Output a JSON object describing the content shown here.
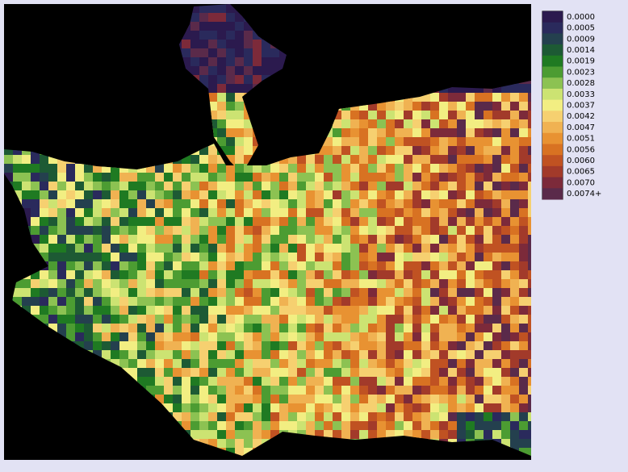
{
  "legend": {
    "entries": [
      {
        "label": "0.0000",
        "color": "#2b1a4e"
      },
      {
        "label": "0.0005",
        "color": "#2a2a5c"
      },
      {
        "label": "0.0009",
        "color": "#24404e"
      },
      {
        "label": "0.0014",
        "color": "#1d5a34"
      },
      {
        "label": "0.0019",
        "color": "#1f7a22"
      },
      {
        "label": "0.0023",
        "color": "#4c9c32"
      },
      {
        "label": "0.0028",
        "color": "#8cc252"
      },
      {
        "label": "0.0033",
        "color": "#cce372"
      },
      {
        "label": "0.0037",
        "color": "#f2ee82"
      },
      {
        "label": "0.0042",
        "color": "#f6d070"
      },
      {
        "label": "0.0047",
        "color": "#f0b252"
      },
      {
        "label": "0.0051",
        "color": "#e89232"
      },
      {
        "label": "0.0056",
        "color": "#d87222"
      },
      {
        "label": "0.0060",
        "color": "#c05222"
      },
      {
        "label": "0.0065",
        "color": "#a23a2a"
      },
      {
        "label": "0.0070",
        "color": "#7c2a3a"
      },
      {
        "label": "0.0074+",
        "color": "#5a2a4a"
      }
    ]
  }
}
